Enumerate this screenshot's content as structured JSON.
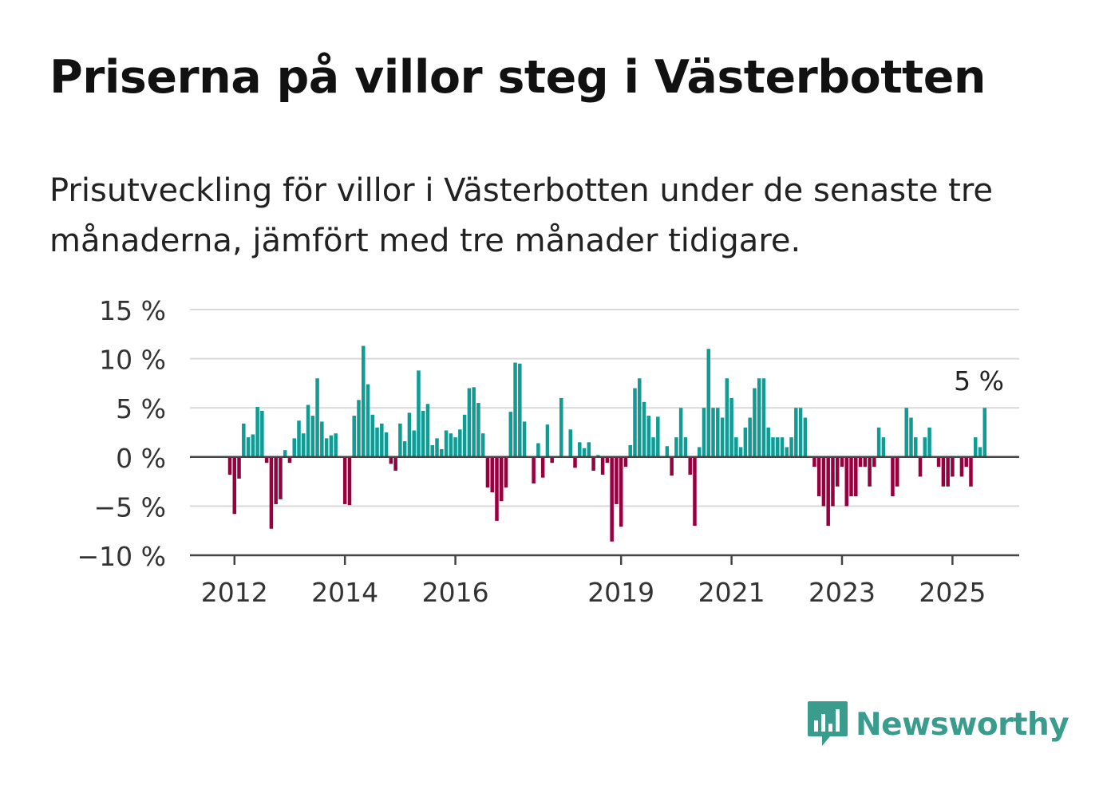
{
  "title": "Priserna på villor steg i Västerbotten",
  "subtitle": "Prisutveckling för villor i Västerbotten under de senaste tre månaderna, jämfört med tre månader tidigare.",
  "brand": {
    "name": "Newsworthy",
    "icon": "bar-chart-speech-bubble-icon",
    "color": "#3a9c8c"
  },
  "chart_data": {
    "type": "bar",
    "xlabel": "",
    "ylabel": "",
    "ylim": [
      -10,
      15
    ],
    "yticks": [
      15,
      10,
      5,
      0,
      -5,
      -10
    ],
    "ytick_labels": [
      "15 %",
      "10 %",
      "5 %",
      "0 %",
      "−5 %",
      "−10 %"
    ],
    "xticks": [
      2012,
      2014,
      2016,
      2019,
      2021,
      2023,
      2025
    ],
    "xtick_labels": [
      "2012",
      "2014",
      "2016",
      "2019",
      "2021",
      "2023",
      "2025"
    ],
    "grid": true,
    "positive_color": "#0e9c95",
    "negative_color": "#97003f",
    "start": "2011-12",
    "end": "2025-07",
    "values": [
      -1.8,
      -5.8,
      -2.2,
      3.4,
      2.0,
      2.3,
      5.1,
      4.7,
      -0.6,
      -7.3,
      -4.8,
      -4.3,
      0.7,
      -0.6,
      1.9,
      3.7,
      2.4,
      5.3,
      4.2,
      8.0,
      3.6,
      1.9,
      2.2,
      2.4,
      0.0,
      -4.8,
      -4.9,
      4.2,
      5.8,
      11.3,
      7.4,
      4.3,
      3.0,
      3.4,
      2.5,
      -0.7,
      -1.4,
      3.4,
      1.6,
      4.5,
      2.7,
      8.8,
      4.7,
      5.4,
      1.2,
      1.9,
      0.8,
      2.7,
      2.4,
      2.0,
      2.8,
      4.3,
      7.0,
      7.1,
      5.5,
      2.4,
      -3.1,
      -3.6,
      -6.5,
      -4.5,
      -3.1,
      4.6,
      9.6,
      9.5,
      3.6,
      0.0,
      -2.7,
      1.4,
      -2.1,
      3.3,
      -0.6,
      0.0,
      6.0,
      0.0,
      2.8,
      -1.1,
      1.5,
      0.9,
      1.5,
      -1.4,
      0.2,
      -1.8,
      -0.6,
      -8.6,
      -4.8,
      -7.1,
      -1.0,
      1.2,
      7.0,
      8.0,
      5.6,
      4.2,
      2.0,
      4.1,
      0.0,
      1.1,
      -1.9,
      2.0,
      5.0,
      2.0,
      -1.8,
      -7.0,
      1.0,
      5.0,
      11.0,
      5.0,
      5.0,
      4.0,
      8.0,
      6.0,
      2.0,
      1.0,
      3.0,
      4.0,
      7.0,
      8.0,
      8.0,
      3.0,
      2.0,
      2.0,
      2.0,
      1.0,
      2.0,
      5.0,
      5.0,
      4.0,
      0.0,
      -1.0,
      -4.0,
      -5.0,
      -7.0,
      -5.0,
      -3.0,
      -1.0,
      -5.0,
      -4.0,
      -4.0,
      -1.0,
      -1.0,
      -3.0,
      -1.0,
      3.0,
      2.0,
      0.0,
      -4.0,
      -3.0,
      0.0,
      5.0,
      4.0,
      2.0,
      -2.0,
      2.0,
      3.0,
      0.0,
      -1.0,
      -3.0,
      -3.0,
      -2.0,
      0.0,
      -2.0,
      -1.0,
      -3.0,
      2.0,
      1.0,
      5.0
    ],
    "annotations": [
      {
        "label": "5 %",
        "date": "2025-07",
        "value": 5
      }
    ]
  }
}
